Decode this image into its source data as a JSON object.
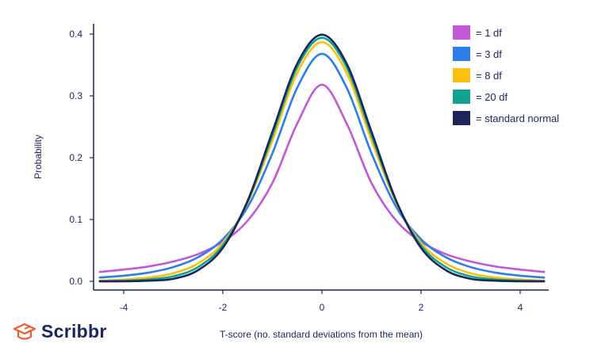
{
  "chart_data": {
    "type": "line",
    "title": "",
    "xlabel": "T-score (no. standard deviations from the mean)",
    "ylabel": "Probability",
    "xlim": [
      -4.6,
      4.55
    ],
    "ylim": [
      -0.014,
      0.42
    ],
    "xticks": [
      -4,
      -2,
      0,
      2,
      4
    ],
    "xtick_labels": [
      "-4",
      "-2",
      "0",
      "2",
      "4"
    ],
    "yticks": [
      0.0,
      0.1,
      0.2,
      0.3,
      0.4
    ],
    "ytick_labels": [
      "0.0",
      "0.1",
      "0.2",
      "0.3",
      "0.4"
    ],
    "grid": false,
    "legend_position": "top-right",
    "x": [
      -4.5,
      -4,
      -3.5,
      -3,
      -2.5,
      -2,
      -1.5,
      -1,
      -0.5,
      0,
      0.5,
      1,
      1.5,
      2,
      2.5,
      3,
      3.5,
      4,
      4.5
    ],
    "series": [
      {
        "name": "= 1 df",
        "color": "#c158d6",
        "values": [
          0.015,
          0.019,
          0.024,
          0.032,
          0.044,
          0.064,
          0.098,
          0.159,
          0.255,
          0.318,
          0.255,
          0.159,
          0.098,
          0.064,
          0.044,
          0.032,
          0.024,
          0.019,
          0.015
        ]
      },
      {
        "name": "= 3 df",
        "color": "#2b7de9",
        "values": [
          0.006,
          0.009,
          0.014,
          0.023,
          0.039,
          0.068,
          0.12,
          0.207,
          0.313,
          0.368,
          0.313,
          0.207,
          0.12,
          0.068,
          0.039,
          0.023,
          0.014,
          0.009,
          0.006
        ]
      },
      {
        "name": "= 8 df",
        "color": "#fbbf0d",
        "values": [
          0.001,
          0.003,
          0.006,
          0.013,
          0.029,
          0.062,
          0.127,
          0.228,
          0.337,
          0.387,
          0.337,
          0.228,
          0.127,
          0.062,
          0.029,
          0.013,
          0.006,
          0.003,
          0.001
        ]
      },
      {
        "name": "= 20 df",
        "color": "#10a38f",
        "values": [
          0.0,
          0.001,
          0.003,
          0.008,
          0.023,
          0.058,
          0.129,
          0.236,
          0.346,
          0.394,
          0.346,
          0.236,
          0.129,
          0.058,
          0.023,
          0.008,
          0.003,
          0.001,
          0.0
        ]
      },
      {
        "name": "= standard normal",
        "color": "#1b2559",
        "values": [
          0.0,
          0.0,
          0.001,
          0.004,
          0.018,
          0.054,
          0.13,
          0.242,
          0.352,
          0.399,
          0.352,
          0.242,
          0.13,
          0.054,
          0.018,
          0.004,
          0.001,
          0.0,
          0.0
        ]
      }
    ]
  },
  "brand": {
    "name": "Scribbr",
    "logo_color": "#f05a28"
  }
}
